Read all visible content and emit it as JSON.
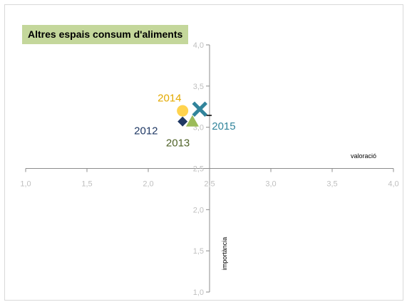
{
  "chart_data": {
    "type": "scatter",
    "title": "Altres espais consum d'aliments",
    "xlabel": "valoració",
    "ylabel": "importància",
    "xlim": [
      1.0,
      4.0
    ],
    "ylim": [
      1.0,
      4.0
    ],
    "x_ticks": [
      "1,0",
      "1,5",
      "2,0",
      "2,5",
      "3,0",
      "3,5",
      "4,0"
    ],
    "y_ticks": [
      "1,0",
      "1,5",
      "2,0",
      "2,5",
      "3,0",
      "3,5",
      "4,0"
    ],
    "axes_cross": {
      "x": 2.5,
      "y": 2.5
    },
    "grid": false,
    "series": [
      {
        "name": "2012",
        "x": 2.28,
        "y": 3.07,
        "marker": "diamond",
        "color": "#1f3864",
        "label_color": "#1f3864"
      },
      {
        "name": "2013",
        "x": 2.36,
        "y": 3.07,
        "marker": "triangle",
        "color": "#9bbb59",
        "label_color": "#4f6228"
      },
      {
        "name": "2014",
        "x": 2.28,
        "y": 3.2,
        "marker": "circle",
        "color": "#ffd34e",
        "label_color": "#e3a900"
      },
      {
        "name": "2015",
        "x": 2.42,
        "y": 3.22,
        "marker": "x",
        "color": "#31849b",
        "label_color": "#31849b"
      }
    ]
  }
}
